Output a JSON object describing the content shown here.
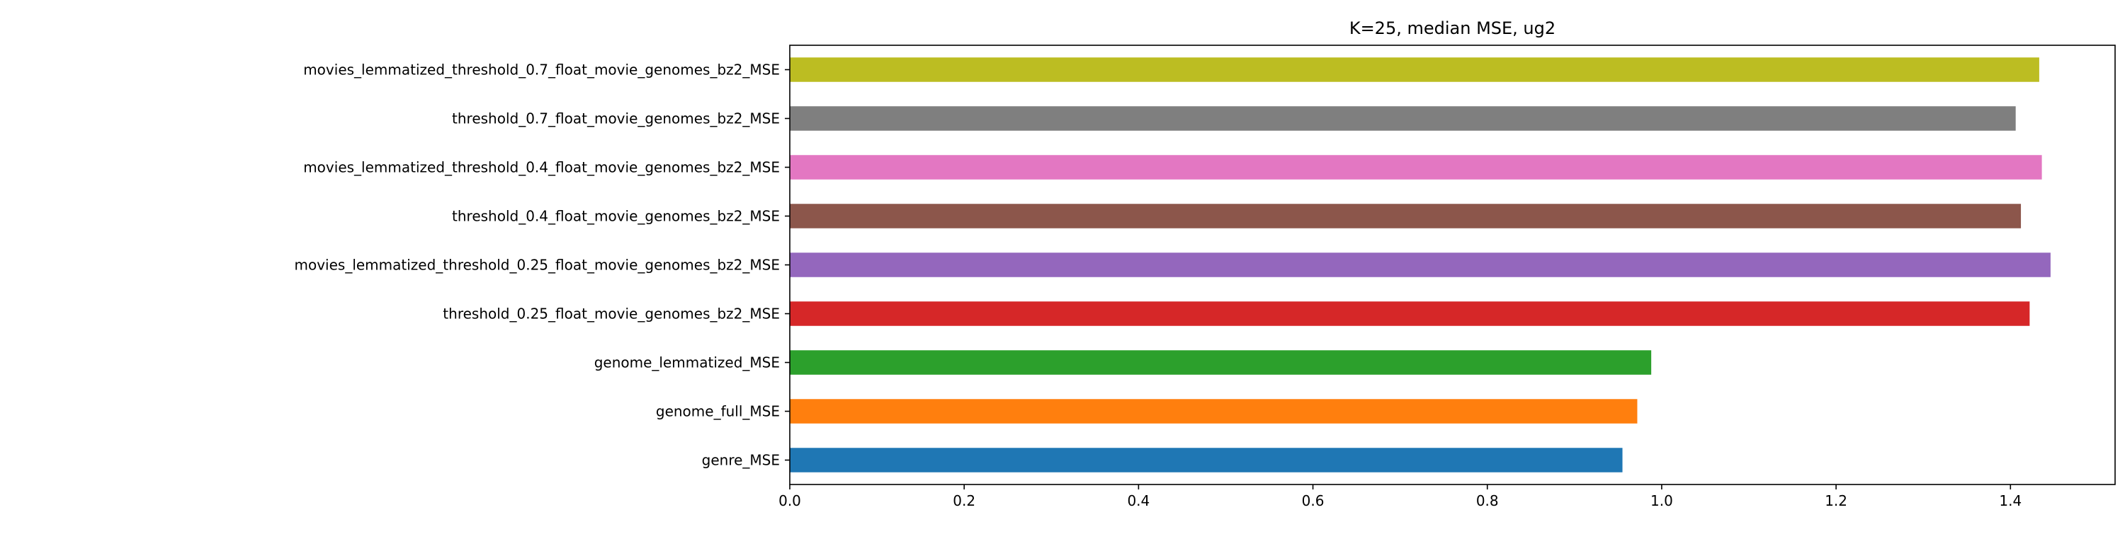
{
  "chart_data": {
    "type": "bar",
    "orientation": "horizontal",
    "title": "K=25, median MSE, ug2",
    "xlabel": "",
    "ylabel": "",
    "xlim": [
      0.0,
      1.52
    ],
    "xticks": [
      0.0,
      0.2,
      0.4,
      0.6,
      0.8,
      1.0,
      1.2,
      1.4
    ],
    "xtick_labels": [
      "0.0",
      "0.2",
      "0.4",
      "0.6",
      "0.8",
      "1.0",
      "1.2",
      "1.4"
    ],
    "grid": false,
    "legend": "none",
    "categories": [
      "genre_MSE",
      "genome_full_MSE",
      "genome_lemmatized_MSE",
      "threshold_0.25_float_movie_genomes_bz2_MSE",
      "movies_lemmatized_threshold_0.25_float_movie_genomes_bz2_MSE",
      "threshold_0.4_float_movie_genomes_bz2_MSE",
      "movies_lemmatized_threshold_0.4_float_movie_genomes_bz2_MSE",
      "threshold_0.7_float_movie_genomes_bz2_MSE",
      "movies_lemmatized_threshold_0.7_float_movie_genomes_bz2_MSE"
    ],
    "values": [
      0.955,
      0.972,
      0.988,
      1.422,
      1.446,
      1.412,
      1.436,
      1.406,
      1.433
    ],
    "colors": [
      "#1f77b4",
      "#ff7f0e",
      "#2ca02c",
      "#d62728",
      "#9467bd",
      "#8c564b",
      "#e377c2",
      "#7f7f7f",
      "#bcbd22"
    ]
  }
}
